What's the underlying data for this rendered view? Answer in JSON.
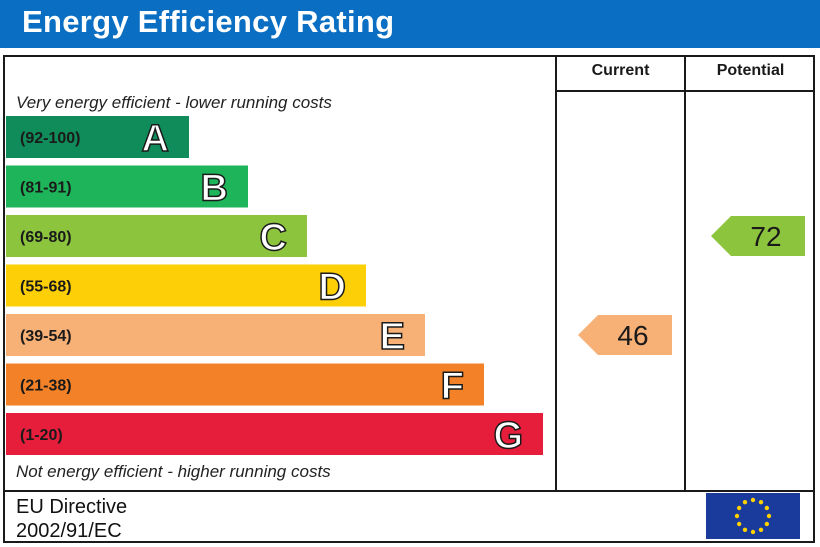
{
  "chart_data": {
    "type": "bar",
    "title": "Energy Efficiency Rating",
    "columns": [
      "Current",
      "Potential"
    ],
    "top_caption": "Very energy efficient - lower running costs",
    "bottom_caption": "Not energy efficient - higher running costs",
    "bands": [
      {
        "range": "(92-100)",
        "letter": "A",
        "min": 92,
        "max": 100,
        "color": "#0f8c5a"
      },
      {
        "range": "(81-91)",
        "letter": "B",
        "min": 81,
        "max": 91,
        "color": "#1db45a"
      },
      {
        "range": "(69-80)",
        "letter": "C",
        "min": 69,
        "max": 80,
        "color": "#8cc43d"
      },
      {
        "range": "(55-68)",
        "letter": "D",
        "min": 55,
        "max": 68,
        "color": "#fdcf06"
      },
      {
        "range": "(39-54)",
        "letter": "E",
        "min": 39,
        "max": 54,
        "color": "#f7b075"
      },
      {
        "range": "(21-38)",
        "letter": "F",
        "min": 21,
        "max": 38,
        "color": "#f28127"
      },
      {
        "range": "(1-20)",
        "letter": "G",
        "min": 1,
        "max": 20,
        "color": "#e61e3c"
      }
    ],
    "current": {
      "value": 46,
      "band": "E",
      "color": "#f7b075"
    },
    "potential": {
      "value": 72,
      "band": "C",
      "color": "#8cc43d"
    }
  },
  "footer": {
    "directive_line1": "EU Directive",
    "directive_line2": "2002/91/EC"
  },
  "colors": {
    "header": "#0a6fc2",
    "eu_flag": "#1a3a9c",
    "eu_stars": "#ffd200"
  }
}
